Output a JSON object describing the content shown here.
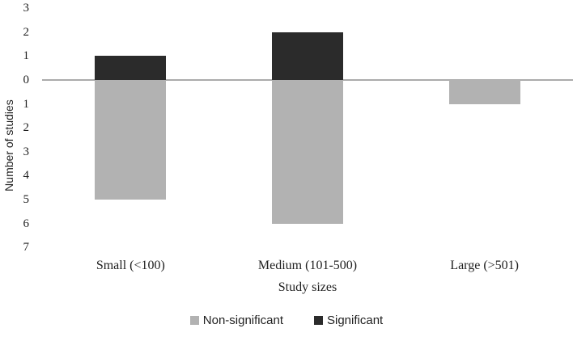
{
  "figure": {
    "background": "#ffffff"
  },
  "chart_data": {
    "type": "bar",
    "subtype": "diverging-stacked-vertical",
    "title": "",
    "xlabel": "Study sizes",
    "ylabel": "Number of studies",
    "categories": [
      "Small (<100)",
      "Medium (101-500)",
      "Large (>501)"
    ],
    "series": [
      {
        "name": "Non-significant",
        "direction": "down",
        "color": "#b2b2b2",
        "values": [
          5,
          6,
          1
        ]
      },
      {
        "name": "Significant",
        "direction": "up",
        "color": "#2b2b2b",
        "values": [
          1,
          2,
          0
        ]
      }
    ],
    "y_axis": {
      "min": -7,
      "max": 3,
      "step": 1,
      "tick_labels": [
        "3",
        "2",
        "1",
        "0",
        "1",
        "2",
        "3",
        "4",
        "5",
        "6",
        "7"
      ],
      "labels_show_absolute_values": true
    },
    "grid": false,
    "zero_line_color": "#ababab",
    "text_color": "#1f1f1f",
    "legend": {
      "position": "bottom",
      "items": [
        {
          "label": "Non-significant",
          "color": "#b2b2b2"
        },
        {
          "label": "Significant",
          "color": "#2b2b2b"
        }
      ]
    }
  }
}
